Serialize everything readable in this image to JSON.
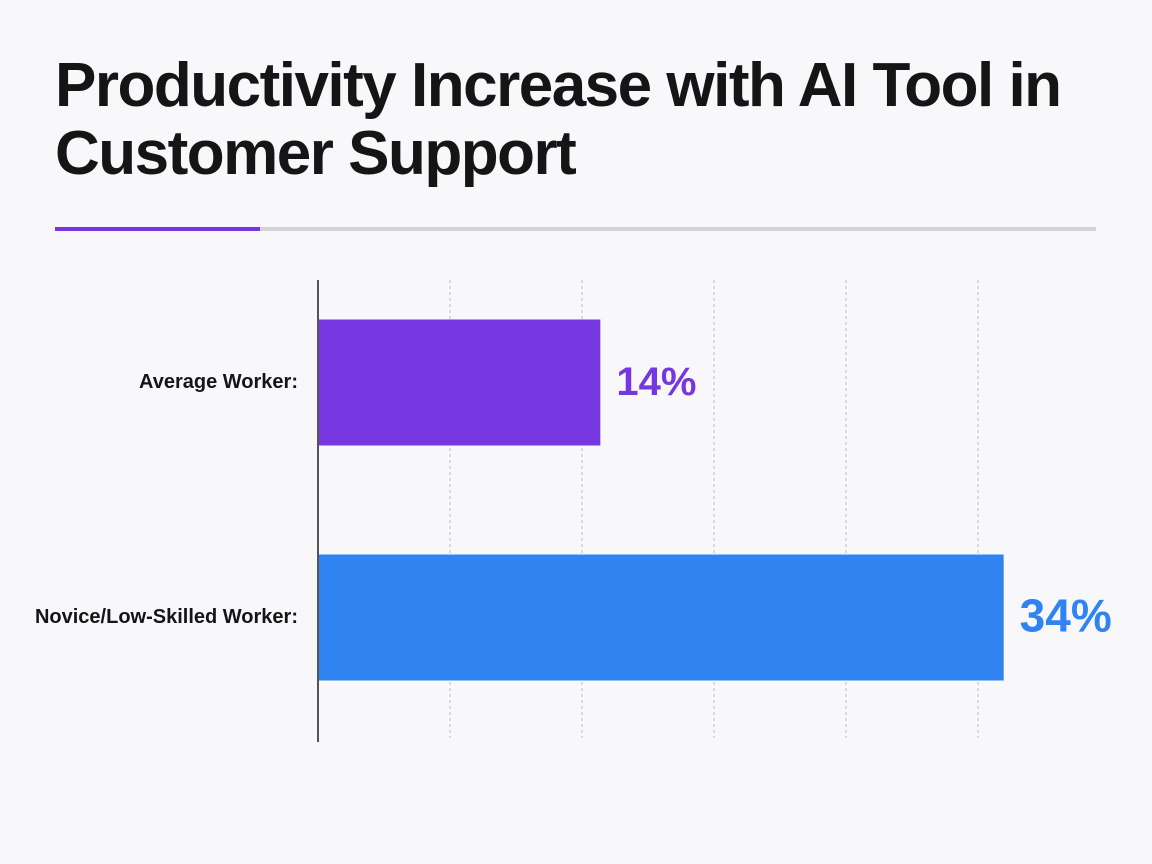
{
  "chart_data": {
    "type": "bar",
    "orientation": "horizontal",
    "title": "Productivity Increase with AI Tool in Customer Support",
    "categories": [
      "Average Worker:",
      "Novice/Low-Skilled Worker:"
    ],
    "values": [
      14,
      34
    ],
    "value_labels": [
      "14%",
      "34%"
    ],
    "colors": [
      "#7636e0",
      "#2f84f2"
    ],
    "xlim": [
      0,
      36
    ],
    "grid": true
  }
}
